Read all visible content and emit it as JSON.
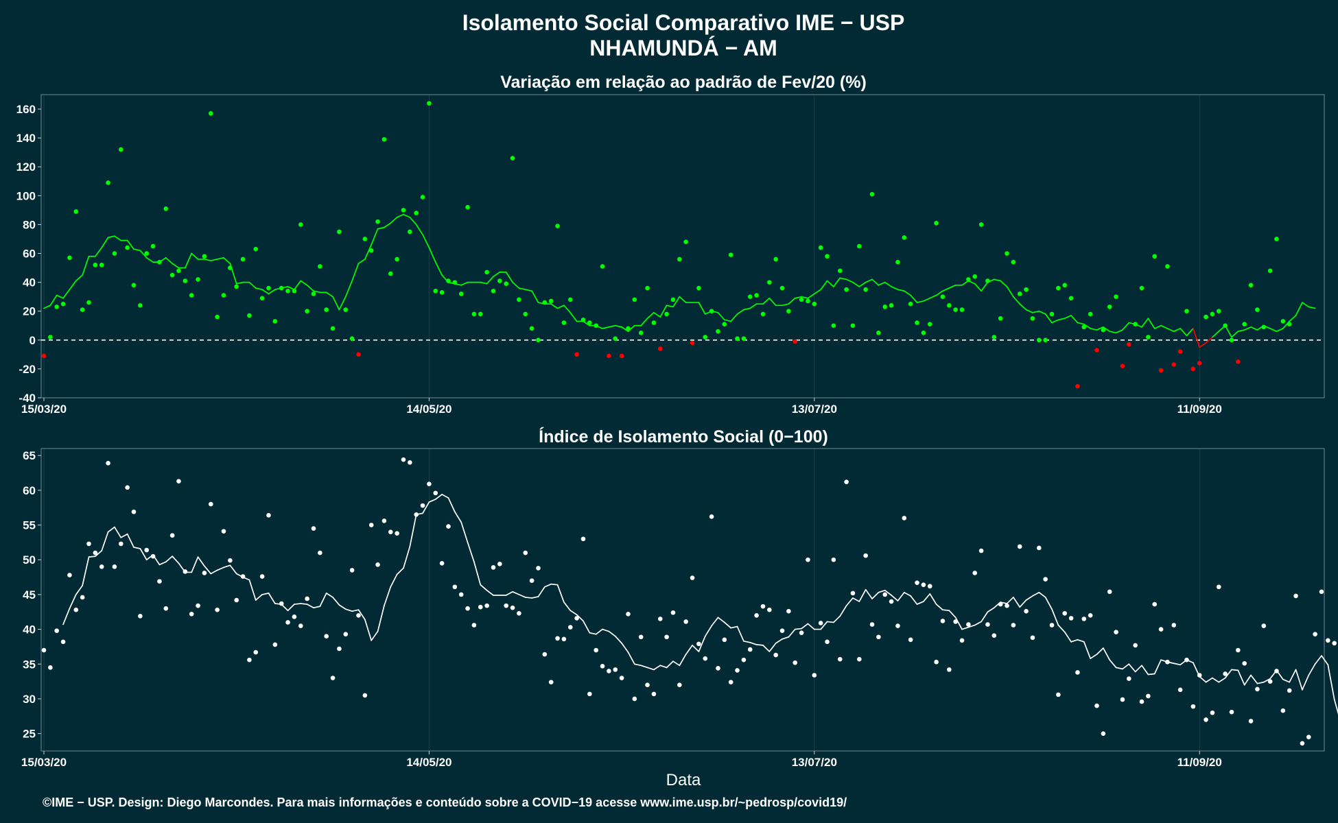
{
  "page": {
    "title_line1": "Isolamento Social Comparativo IME − USP",
    "title_line2": "NHAMUNDÁ − AM",
    "footer": "©IME − USP. Design: Diego Marcondes. Para mais informações e conteúdo sobre a COVID−19 acesse www.ime.usp.br/~pedrosp/covid19/"
  },
  "colors": {
    "background": "#022a35",
    "positive": "#00ff00",
    "negative": "#ff0000",
    "index": "#ffffff"
  },
  "chart_data": [
    {
      "type": "scatter",
      "title": "Variação em relação ao padrão de Fev/20 (%)",
      "xlabel": "",
      "ylabel": "",
      "x_start": "15/03/20",
      "x_range_days": [
        0,
        199
      ],
      "ylim": [
        -40,
        170
      ],
      "yticks": [
        -40,
        -20,
        0,
        20,
        40,
        60,
        80,
        100,
        120,
        140,
        160
      ],
      "xticks": [
        {
          "day": 0,
          "label": "15/03/20"
        },
        {
          "day": 60,
          "label": "14/05/20"
        },
        {
          "day": 120,
          "label": "13/07/20"
        },
        {
          "day": 180,
          "label": "11/09/20"
        }
      ],
      "reference_line": 0,
      "series": [
        {
          "kind": "points",
          "values": [
            -11,
            2,
            23,
            25,
            57,
            89,
            21,
            26,
            52,
            52,
            109,
            60,
            132,
            64,
            38,
            24,
            60,
            65,
            54,
            91,
            45,
            48,
            41,
            31,
            42,
            58,
            157,
            16,
            31,
            50,
            37,
            56,
            17,
            63,
            29,
            36,
            13,
            36,
            34,
            34,
            80,
            20,
            32,
            51,
            21,
            8,
            75,
            21,
            1,
            -10,
            70,
            62,
            82,
            139,
            46,
            56,
            90,
            75,
            88,
            99,
            164,
            34,
            33,
            41,
            40,
            32,
            92,
            18,
            18,
            47,
            34,
            41,
            39,
            126,
            28,
            18,
            8,
            0,
            26,
            27,
            79,
            12,
            28,
            -10,
            14,
            12,
            10,
            51,
            -11,
            1,
            -11,
            8,
            28,
            5,
            36,
            12,
            -6,
            18,
            28,
            56,
            68,
            -2,
            36,
            2,
            20,
            6,
            11,
            59,
            1,
            1,
            30,
            31,
            18,
            40,
            56,
            36,
            20,
            -1,
            28,
            27,
            25,
            64,
            58,
            10,
            48,
            35,
            10,
            65,
            35,
            101,
            5,
            23,
            24,
            54,
            71,
            25,
            12,
            5,
            11,
            81,
            30,
            24,
            21,
            21,
            42,
            44,
            80,
            41,
            2,
            15,
            60,
            54,
            32,
            35,
            15,
            0,
            0,
            18,
            36,
            38,
            29,
            -32,
            9,
            18,
            -7,
            7,
            23,
            30,
            -18,
            -3,
            11,
            36,
            2,
            58,
            -21,
            51,
            -17,
            -8,
            20,
            -20,
            -16,
            16,
            18,
            20,
            10,
            0,
            -15,
            11,
            38,
            21,
            9,
            48,
            70,
            13,
            11
          ],
          "colors_rule": "green if value >= 0, red if value < 0"
        },
        {
          "kind": "moving_average_7d",
          "values": [
            22,
            24,
            31,
            29,
            35,
            41,
            45,
            58,
            58,
            64,
            71,
            72,
            69,
            69,
            63,
            62,
            57,
            54,
            54,
            57,
            53,
            50,
            50,
            60,
            56,
            56,
            55,
            56,
            57,
            53,
            39,
            40,
            40,
            36,
            35,
            32,
            35,
            36,
            37,
            35,
            41,
            38,
            34,
            33,
            33,
            30,
            21,
            30,
            41,
            53,
            56,
            66,
            77,
            78,
            81,
            85,
            87,
            85,
            80,
            73,
            64,
            54,
            45,
            40,
            39,
            38,
            40,
            40,
            40,
            39,
            44,
            47,
            47,
            40,
            36,
            35,
            34,
            26,
            25,
            25,
            22,
            24,
            19,
            13,
            13,
            10,
            10,
            8,
            9,
            10,
            9,
            6,
            10,
            10,
            15,
            19,
            16,
            24,
            23,
            30,
            26,
            26,
            26,
            18,
            20,
            19,
            14,
            13,
            18,
            21,
            22,
            25,
            25,
            29,
            24,
            24,
            25,
            29,
            30,
            29,
            32,
            35,
            41,
            37,
            43,
            42,
            40,
            37,
            40,
            42,
            38,
            40,
            37,
            35,
            34,
            31,
            26,
            27,
            29,
            31,
            34,
            36,
            38,
            38,
            41,
            39,
            34,
            40,
            42,
            41,
            37,
            30,
            25,
            21,
            19,
            20,
            18,
            12,
            14,
            15,
            17,
            12,
            11,
            8,
            7,
            9,
            6,
            5,
            7,
            12,
            11,
            9,
            15,
            8,
            10,
            8,
            6,
            8,
            3,
            8,
            -5,
            -2,
            2,
            6,
            10,
            2,
            6,
            7,
            9,
            7,
            10,
            8,
            6,
            8,
            13,
            17,
            26,
            23,
            22
          ],
          "colors_rule": "green if value >= 0, red if value < 0"
        }
      ]
    },
    {
      "type": "scatter",
      "title": "Índice de Isolamento Social (0−100)",
      "xlabel": "Data",
      "ylabel": "",
      "x_start": "15/03/20",
      "x_range_days": [
        0,
        199
      ],
      "ylim": [
        22.5,
        66
      ],
      "yticks": [
        25,
        30,
        35,
        40,
        45,
        50,
        55,
        60,
        65
      ],
      "xticks": [
        {
          "day": 0,
          "label": "15/03/20"
        },
        {
          "day": 60,
          "label": "14/05/20"
        },
        {
          "day": 120,
          "label": "13/07/20"
        },
        {
          "day": 180,
          "label": "11/09/20"
        }
      ],
      "series": [
        {
          "kind": "points",
          "values": [
            37,
            34.5,
            39.8,
            38.2,
            47.8,
            42.8,
            44.6,
            52.3,
            51,
            49,
            63.9,
            49,
            52.3,
            60.4,
            56.9,
            41.9,
            51.4,
            50.5,
            46.9,
            43,
            53.5,
            61.3,
            48.3,
            42.2,
            43.4,
            48.1,
            58,
            42.8,
            54.1,
            49.9,
            44.2,
            47.6,
            35.6,
            36.7,
            47.6,
            56.4,
            37.8,
            43.7,
            41,
            41.8,
            40.5,
            44.4,
            54.5,
            51,
            39,
            33,
            37.2,
            39.3,
            48.5,
            42,
            30.5,
            55,
            49.3,
            55.6,
            54,
            53.8,
            64.4,
            64,
            56.5,
            57.8,
            60.9,
            59.6,
            49.5,
            54.8,
            46.1,
            45,
            43,
            40.6,
            43.2,
            43.4,
            48.9,
            49.4,
            43.4,
            43.1,
            42.3,
            51,
            47,
            48.8,
            36.4,
            32.4,
            38.7,
            38.6,
            40.3,
            41.6,
            53,
            30.7,
            37,
            34.7,
            34,
            34.2,
            33,
            42.2,
            30,
            38.9,
            32,
            30.7,
            41.5,
            38.9,
            42.4,
            32,
            41.1,
            47.4,
            37.9,
            35.8,
            56.2,
            34.4,
            38.5,
            32.4,
            34.1,
            35.6,
            37.1,
            42,
            43.3,
            42.8,
            36.3,
            39.8,
            42.6,
            35.2,
            39.5,
            50,
            33.4,
            40.9,
            38.2,
            50,
            35.7,
            61.2,
            45.2,
            35.7,
            50.6,
            40.7,
            38.9,
            45,
            44,
            40.5,
            56,
            38.5,
            46.7,
            46.4,
            46.2,
            35.3,
            41.2,
            34.2,
            41.1,
            38.4,
            40.7,
            48.1,
            51.3,
            40.7,
            39.1,
            43.6,
            43.4,
            40.6,
            51.9,
            42.6,
            38.8,
            51.7,
            47.2,
            40.6,
            30.6,
            42.3,
            41.6,
            33.8,
            41.5,
            42,
            29,
            25,
            45.4,
            39.6,
            29.9,
            32.9,
            37.7,
            29.6,
            30.4,
            43.6,
            40,
            35.3,
            40.6,
            31.3,
            35.6,
            28.9,
            33.4,
            27,
            28,
            46.1,
            33.6,
            28.1,
            37,
            35.1,
            26.8,
            31.4,
            40.5,
            32.5,
            34,
            28.3,
            31.2,
            44.8,
            23.6,
            24.5,
            39.3,
            45.4,
            38.4,
            38,
            36
          ],
          "color": "#ffffff"
        },
        {
          "kind": "moving_average_7d",
          "start_day": 3,
          "values": [
            40.7,
            43,
            45,
            46.3,
            50.4,
            50.5,
            51.3,
            54,
            54.7,
            53.2,
            53.7,
            51.8,
            51.6,
            50,
            50.7,
            49.3,
            49.7,
            50.5,
            49.5,
            48.2,
            48.2,
            50.4,
            49.1,
            48,
            48.5,
            48.9,
            49.2,
            48,
            47.5,
            47.1,
            44.2,
            45,
            45.2,
            43.7,
            43.6,
            42.7,
            43.6,
            43.7,
            43.6,
            43.1,
            43.3,
            45.2,
            44.6,
            43.5,
            42.9,
            42.6,
            42.8,
            41.4,
            38.4,
            39.7,
            43.4,
            46.1,
            47.9,
            48.8,
            51.9,
            56.5,
            56.7,
            58.3,
            58.7,
            59.4,
            58.9,
            56.9,
            55.4,
            52.5,
            49.7,
            46.4,
            45.6,
            44.9,
            44.9,
            44.9,
            45.4,
            45,
            44.6,
            44.5,
            44.7,
            46.1,
            46.5,
            46.4,
            43.9,
            42.7,
            42.1,
            41.2,
            39.5,
            39.3,
            40,
            39.7,
            39,
            38,
            36.7,
            35,
            34.8,
            34.5,
            34.2,
            34.8,
            34.5,
            35.4,
            34.8,
            36.4,
            37.7,
            36.8,
            39,
            40.5,
            41.7,
            41,
            40.2,
            40.4,
            38.3,
            38.1,
            37.8,
            37.7,
            36.8,
            38,
            38.6,
            38.9,
            40,
            40.1,
            40.8,
            40,
            40,
            41.1,
            41,
            41.9,
            43.4,
            44.5,
            44,
            45.7,
            44.4,
            45.3,
            45.6,
            44.9,
            44.1,
            45.3,
            44.8,
            43.6,
            44,
            45.1,
            43.6,
            42.8,
            42.7,
            41.7,
            40,
            40.3,
            40.6,
            41.1,
            42.5,
            43.1,
            43.9,
            43.7,
            44.6,
            43.2,
            44.2,
            44.8,
            45.3,
            44.6,
            42.9,
            40.6,
            39.6,
            38.2,
            38.5,
            38.2,
            35.8,
            36.4,
            37.3,
            35.6,
            34.5,
            34.3,
            35,
            33.9,
            34.8,
            33.5,
            33.6,
            35.6,
            35.3,
            35.1,
            34.9,
            35.6,
            35.2,
            33.2,
            32.4,
            33,
            32.4,
            33,
            34.2,
            34.1,
            32,
            33.4,
            32.2,
            32.4,
            32.9,
            34.1,
            32.8,
            32.4,
            34.2,
            31.3,
            33.4,
            35,
            36.2,
            34.9,
            29.9,
            26.6,
            24.8
          ],
          "color": "#ffffff"
        }
      ]
    }
  ]
}
